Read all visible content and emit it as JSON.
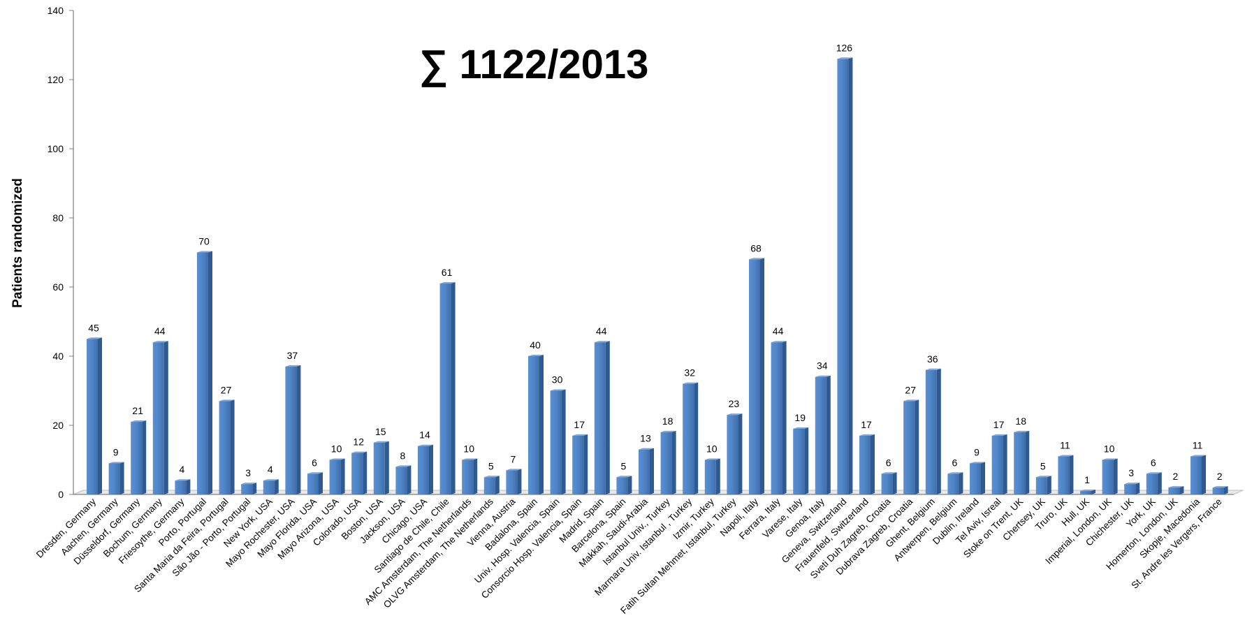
{
  "chart_data": {
    "type": "bar",
    "title": "∑ 1122/2013",
    "xlabel": "",
    "ylabel": "Patients randomized",
    "ylim": [
      0,
      140
    ],
    "yticks": [
      0,
      20,
      40,
      60,
      80,
      100,
      120,
      140
    ],
    "grid": false,
    "legend": "none",
    "bar_color": "#4a7fc1",
    "categories": [
      "Dresden, Germany",
      "Aachen, Germany",
      "Düsseldorf, Germany",
      "Bochum, Germany",
      "Friesoythe, Germany",
      "Porto, Portugal",
      "Santa Maria da Feira, Portugal",
      "São Jão - Porto, Portugal",
      "New York, USA",
      "Mayo Rochester, USA",
      "Mayo Florida, USA",
      "Mayo Arizona, USA",
      "Colorado, USA",
      "Boston, USA",
      "Jackson, USA",
      "Chicago, USA",
      "Santiago de Chile, Chile",
      "AMC Amsterdam, The Netherlands",
      "OLVG Amsterdam, The Netherlands",
      "Vienna, Austria",
      "Badalona, Spain",
      "Univ. Hosp. Valencia, Spain",
      "Consorcio Hosp. Valencia, Spain",
      "Madrid, Spain",
      "Barcelona, Spain",
      "Makkah, Saudi-Arabia",
      "Istanbul Univ., Turkey",
      "Marmara Univ. Istanbul , Turkey",
      "Izmir, Turkey",
      "Fatih Sultan Mehmet, Istanbul, Turkey",
      "Napoli, Italy",
      "Ferrara, Italy",
      "Varese, Italy",
      "Genoa, Italy",
      "Geneva, Switzerland",
      "Frauenfeld, Switzerland",
      "Sveti Duh Zagreb, Croatia",
      "Dubrava Zagreb, Croatia",
      "Ghent, Belgium",
      "Antwerpen, Belgium",
      "Dublin, Ireland",
      "Tel Aviv, Isreal",
      "Stoke on Trent, UK",
      "Chertsey, UK",
      "Truro, UK",
      "Hull, UK",
      "Imperial, London, UK",
      "Chichester, UK",
      "York, UK",
      "Homerton, London, UK",
      "Skopje, Macedonia",
      "St. Andre les Vergers, France"
    ],
    "values": [
      45,
      9,
      21,
      44,
      4,
      70,
      27,
      3,
      4,
      37,
      6,
      10,
      12,
      15,
      8,
      14,
      61,
      10,
      5,
      7,
      40,
      30,
      17,
      44,
      5,
      13,
      18,
      32,
      10,
      23,
      68,
      44,
      19,
      34,
      126,
      17,
      6,
      27,
      36,
      6,
      9,
      17,
      18,
      5,
      11,
      1,
      10,
      3,
      6,
      2,
      11,
      2
    ],
    "data_labels": [
      "45",
      "9",
      "21",
      "44",
      "4",
      "70",
      "27",
      "3",
      "4",
      "37",
      "6",
      "10",
      "12",
      "15",
      "8",
      "14",
      "61",
      "10",
      "5",
      "7",
      "40",
      "30",
      "17",
      "44",
      "5",
      "13",
      "18",
      "32",
      "10",
      "23",
      "68",
      "44",
      "19",
      "34",
      "126",
      "17",
      "6",
      "27",
      "36",
      "6",
      "9",
      "17",
      "18",
      "5",
      "11",
      "1",
      "10",
      "3",
      "6",
      "2",
      "11",
      "2"
    ]
  }
}
